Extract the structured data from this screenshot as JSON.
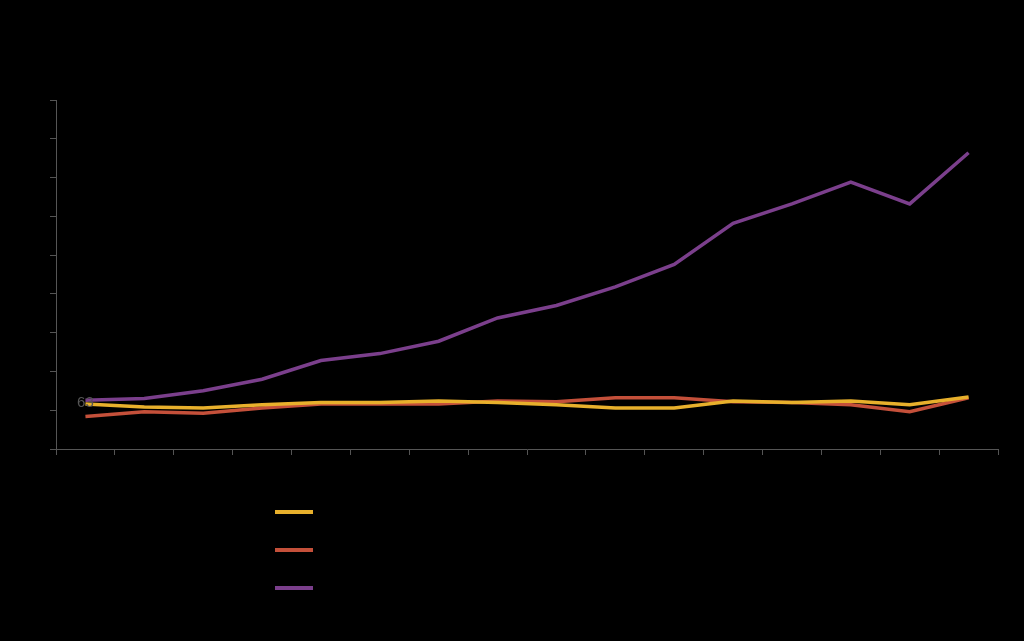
{
  "chart_data": {
    "type": "line",
    "categories": [
      null,
      null,
      null,
      null,
      null,
      null,
      null,
      null,
      null,
      null,
      null,
      null,
      null,
      null,
      null,
      null
    ],
    "series": [
      {
        "color": "#e8b02c",
        "values": [
          58,
          54,
          53,
          57,
          60,
          60,
          62,
          60,
          57,
          53,
          53,
          62,
          60,
          62,
          57,
          67
        ]
      },
      {
        "color": "#c4503a",
        "values": [
          42,
          48,
          46,
          53,
          58,
          58,
          58,
          62,
          61,
          66,
          66,
          61,
          60,
          57,
          48,
          66
        ]
      },
      {
        "color": "#7b3f8c",
        "values": [
          63,
          65,
          75,
          90,
          114,
          123,
          139,
          169,
          185,
          209,
          238,
          291,
          316,
          344,
          316,
          382
        ]
      }
    ],
    "ylim": [
      0,
      450
    ],
    "yticks": [
      0,
      50,
      100,
      150,
      200,
      250,
      300,
      350,
      400,
      450
    ],
    "tick_labels": false,
    "grid": false,
    "legend": "bottom",
    "annotations": [
      {
        "text": "63",
        "x": 0,
        "y": 63
      }
    ]
  }
}
